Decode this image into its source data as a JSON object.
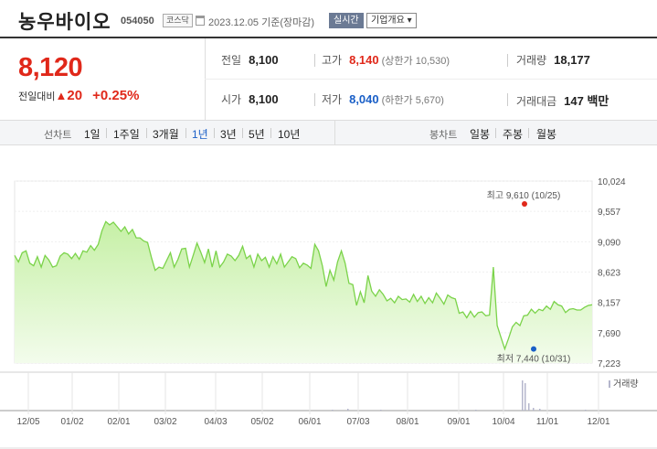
{
  "header": {
    "name": "농우바이오",
    "code": "054050",
    "market": "코스닥",
    "date": "2023.12.05 기준(장마감)",
    "live": "실시간",
    "corp_info": "기업개요 ▾"
  },
  "summary": {
    "price": "8,120",
    "change_label": "전일대비",
    "change_arrow": "▲",
    "change_value": "20",
    "change_rate": "+0.25%",
    "prev_close_label": "전일",
    "prev_close": "8,100",
    "open_label": "시가",
    "open": "8,100",
    "high_label": "고가",
    "high": "8,140",
    "upper_limit": "(상한가 10,530)",
    "low_label": "저가",
    "low": "8,040",
    "lower_limit": "(하한가 5,670)",
    "volume_label": "거래량",
    "volume": "18,177",
    "amount_label": "거래대금",
    "amount": "147 백만"
  },
  "period_bar": {
    "line_title": "선차트",
    "line_periods": [
      "1일",
      "1주일",
      "3개월",
      "1년",
      "3년",
      "5년",
      "10년"
    ],
    "active_period": "1년",
    "candle_title": "봉차트",
    "candle_periods": [
      "일봉",
      "주봉",
      "월봉"
    ]
  },
  "chart_data": {
    "type": "area",
    "y_ticks": [
      "10,024",
      "9,557",
      "9,090",
      "8,623",
      "8,157",
      "7,690",
      "7,223"
    ],
    "ylim": [
      7223,
      10024
    ],
    "x_ticks": [
      "12/05",
      "01/02",
      "02/01",
      "03/02",
      "04/03",
      "05/02",
      "06/01",
      "07/03",
      "08/01",
      "09/01",
      "10/04",
      "11/01",
      "12/01"
    ],
    "high_annotation": "최고 9,610 (10/25)",
    "low_annotation": "최저 7,440 (10/31)",
    "volume_legend": "거래량",
    "colors": {
      "line": "#7bd34a",
      "fill_top": "#c6f0a6",
      "fill_bottom": "#f3fcec",
      "high": "#e0281a",
      "low": "#1a5fc7",
      "volume": "#b4b6cc"
    },
    "price_series": [
      8880,
      8780,
      8920,
      8950,
      8760,
      8720,
      8860,
      8700,
      8880,
      8810,
      8700,
      8720,
      8870,
      8920,
      8900,
      8830,
      8910,
      8820,
      8950,
      8930,
      9030,
      8960,
      9050,
      9260,
      9400,
      9350,
      9390,
      9320,
      9250,
      9320,
      9210,
      9280,
      9150,
      9150,
      9100,
      9080,
      8850,
      8650,
      8700,
      8680,
      8800,
      8920,
      8700,
      8820,
      8980,
      8990,
      8700,
      8880,
      9070,
      8930,
      8770,
      8980,
      8700,
      8950,
      8700,
      8780,
      8900,
      8870,
      8800,
      8880,
      9020,
      8830,
      8880,
      8700,
      8900,
      8800,
      8850,
      8700,
      8860,
      8750,
      8900,
      8700,
      8780,
      8860,
      8830,
      8690,
      8760,
      8730,
      8680,
      9050,
      8950,
      8720,
      8400,
      8650,
      8500,
      8780,
      8950,
      8760,
      8450,
      8430,
      8110,
      8320,
      8150,
      8570,
      8330,
      8250,
      8350,
      8280,
      8180,
      8220,
      8150,
      8250,
      8200,
      8210,
      8160,
      8280,
      8170,
      8250,
      8140,
      8230,
      8150,
      8300,
      8220,
      8130,
      8270,
      8230,
      8210,
      7990,
      8010,
      7920,
      8020,
      7930,
      8000,
      8010,
      7950,
      7960,
      8700,
      7800,
      7620,
      7440,
      7600,
      7780,
      7850,
      7800,
      7950,
      7960,
      8050,
      7990,
      8050,
      8030,
      8100,
      8050,
      8170,
      8120,
      8100,
      8000,
      8050,
      8060,
      8040,
      8040,
      8080,
      8110,
      8120
    ],
    "volume_series": [
      [
        363,
        1
      ],
      [
        380,
        2
      ],
      [
        416,
        1
      ],
      [
        520,
        1
      ],
      [
        571,
        33
      ],
      [
        574,
        30
      ],
      [
        578,
        8
      ],
      [
        583,
        3
      ],
      [
        590,
        2
      ],
      [
        640,
        1
      ]
    ]
  }
}
